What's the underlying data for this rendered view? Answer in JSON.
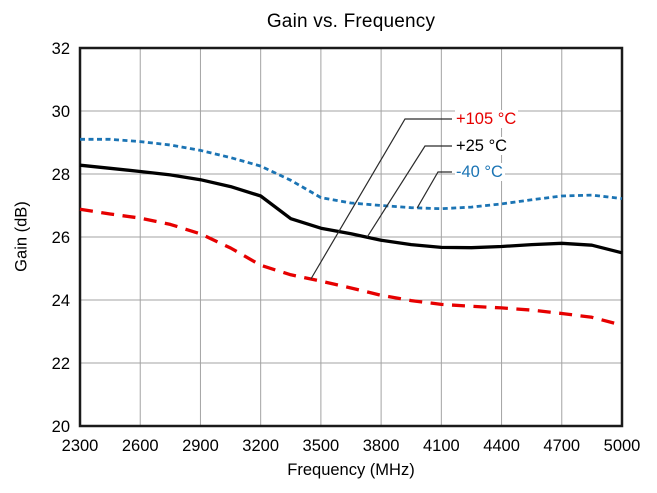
{
  "chart": {
    "title": "Gain vs. Frequency",
    "xlabel": "Frequency (MHz)",
    "ylabel": "Gain (dB)"
  },
  "chart_data": {
    "type": "line",
    "title": "Gain vs. Frequency",
    "xlabel": "Frequency (MHz)",
    "ylabel": "Gain (dB)",
    "xlim": [
      2300,
      5000
    ],
    "ylim": [
      20,
      32
    ],
    "x_ticks": [
      2300,
      2600,
      2900,
      3200,
      3500,
      3800,
      4100,
      4400,
      4700,
      5000
    ],
    "y_ticks": [
      20,
      22,
      24,
      26,
      28,
      30,
      32
    ],
    "grid": true,
    "grid_color": "#a3a3a3",
    "frame_color": "#1a1a1a",
    "legend_position": "inside-top-right-with-callouts",
    "x": [
      2300,
      2450,
      2600,
      2750,
      2900,
      3050,
      3200,
      3350,
      3500,
      3650,
      3800,
      3950,
      4100,
      4250,
      4400,
      4550,
      4700,
      4850,
      5000
    ],
    "series": [
      {
        "name": "+105 °C",
        "color": "#e60000",
        "style": "long-dash",
        "callout_freq": 3450,
        "values": [
          26.88,
          26.73,
          26.6,
          26.4,
          26.1,
          25.65,
          25.1,
          24.8,
          24.6,
          24.38,
          24.15,
          23.98,
          23.86,
          23.8,
          23.75,
          23.68,
          23.57,
          23.45,
          23.2
        ]
      },
      {
        "name": "+25 °C",
        "color": "#000000",
        "style": "solid",
        "callout_freq": 3730,
        "values": [
          28.28,
          28.18,
          28.08,
          27.97,
          27.82,
          27.6,
          27.3,
          26.58,
          26.28,
          26.1,
          25.9,
          25.76,
          25.67,
          25.66,
          25.7,
          25.76,
          25.8,
          25.74,
          25.5
        ]
      },
      {
        "name": "-40 °C",
        "color": "#1b74b4",
        "style": "short-dash",
        "callout_freq": 3980,
        "values": [
          29.1,
          29.1,
          29.03,
          28.92,
          28.75,
          28.52,
          28.25,
          27.8,
          27.25,
          27.08,
          27.0,
          26.93,
          26.9,
          26.95,
          27.05,
          27.18,
          27.3,
          27.33,
          27.22
        ]
      }
    ]
  }
}
